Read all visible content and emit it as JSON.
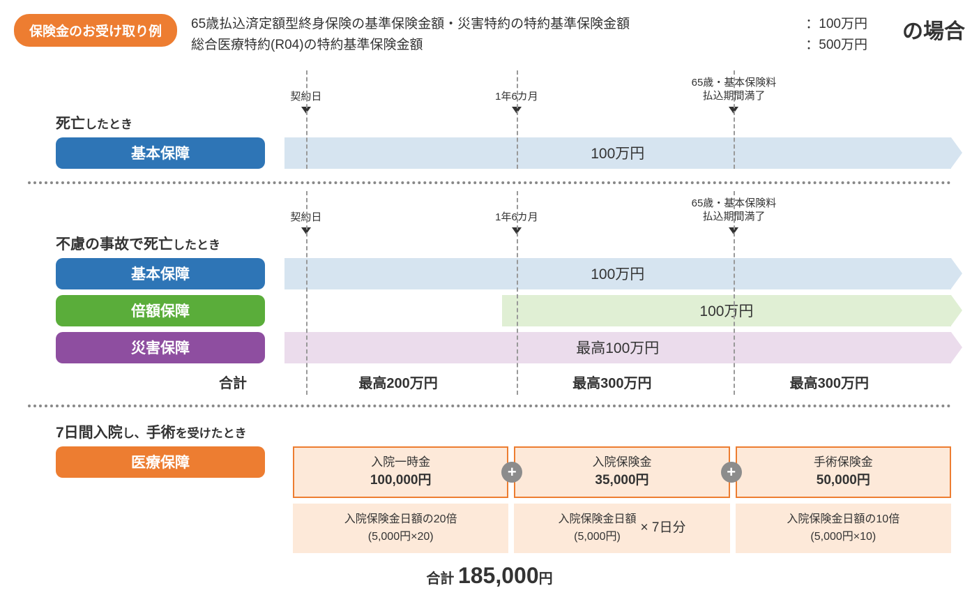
{
  "colors": {
    "orange": "#ed7d31",
    "blue": "#2e75b6",
    "green": "#5aad3a",
    "purple": "#8e4ea0",
    "light_blue": "#d6e4f0",
    "light_green": "#e0efd4",
    "light_purple": "#ebdcec",
    "light_orange": "#fde9d9",
    "grey_plus": "#8c8c8c"
  },
  "header": {
    "title_badge": "保険金のお受け取り例",
    "line1_prefix": "65歳払込済定額型終身保険の基準保険金額・災害特約の特約基準保険金額",
    "line1_amount": "：100万円",
    "line2_prefix": "総合医療特約(R04)の特約基準保険金額",
    "line2_amount": "：500万円",
    "case_suffix": "の場合"
  },
  "timeline": {
    "labels": [
      {
        "text": "契約日",
        "pos_pct": 2
      },
      {
        "text": "1年6カ月",
        "pos_pct": 34
      },
      {
        "text_line1": "65歳・基本保険料",
        "text_line2": "払込期間満了",
        "pos_pct": 67
      }
    ]
  },
  "sections": [
    {
      "title_main": "死亡",
      "title_tail": "したとき",
      "show_timeline": true,
      "vlines_pct": [
        2,
        34,
        67
      ],
      "rows": [
        {
          "label": "基本保障",
          "label_color": "#2e75b6",
          "bar_class": "blue",
          "bar_start_pct": 2,
          "bar_end_pct": 100,
          "text": "100万円"
        }
      ]
    },
    {
      "title_main": "不慮の事故で死亡",
      "title_tail": "したとき",
      "show_timeline": true,
      "vlines_pct": [
        2,
        34,
        67
      ],
      "rows": [
        {
          "label": "基本保障",
          "label_color": "#2e75b6",
          "bar_class": "blue",
          "bar_start_pct": 2,
          "bar_end_pct": 100,
          "text": "100万円"
        },
        {
          "label": "倍額保障",
          "label_color": "#5aad3a",
          "bar_class": "green",
          "bar_start_pct": 34,
          "bar_end_pct": 100,
          "text": "100万円"
        },
        {
          "label": "災害保障",
          "label_color": "#8e4ea0",
          "bar_class": "purple",
          "bar_start_pct": 2,
          "bar_end_pct": 100,
          "text": "最高100万円"
        }
      ],
      "totals": {
        "label": "合計",
        "cells": [
          "最高200万円",
          "最高300万円",
          "最高300万円"
        ],
        "vlines_pct": [
          2,
          34,
          67
        ]
      }
    }
  ],
  "medical": {
    "title_main": "7日間入院",
    "title_mid": "し、",
    "title_main2": "手術",
    "title_tail": "を受けたとき",
    "label": "医療保障",
    "label_color": "#ed7d31",
    "cols": [
      {
        "top_title": "入院一時金",
        "top_amount": "100,000円",
        "bottom_line1": "入院保険金日額の20倍",
        "bottom_line2": "(5,000円×20)"
      },
      {
        "top_title": "入院保険金",
        "top_amount": "35,000円",
        "bottom_line1": "入院保険金日額",
        "bottom_line2": "(5,000円)",
        "bottom_mult": "× 7日分"
      },
      {
        "top_title": "手術保険金",
        "top_amount": "50,000円",
        "bottom_line1": "入院保険金日額の10倍",
        "bottom_line2": "(5,000円×10)"
      }
    ],
    "plus_positions_pct": [
      33.3,
      66.6
    ],
    "grand_total_prefix": "合計",
    "grand_total_amount": "185,000",
    "grand_total_suffix": "円"
  }
}
